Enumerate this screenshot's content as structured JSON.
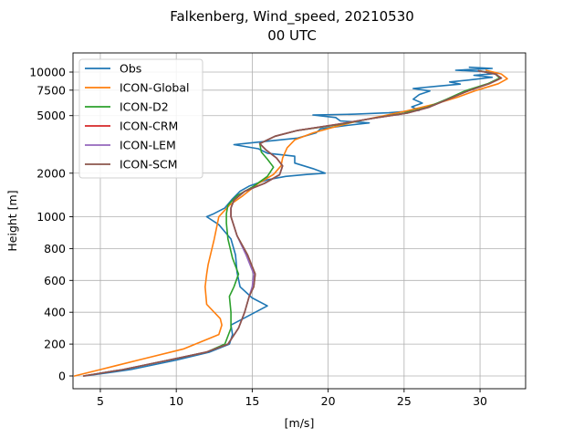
{
  "chart_data": {
    "type": "line",
    "title": "Falkenberg, Wind_speed, 20210530",
    "subtitle": "00 UTC",
    "xlabel": "[m/s]",
    "ylabel": "Height [m]",
    "xlim": [
      3.2,
      33.0
    ],
    "xticks": [
      5,
      10,
      15,
      20,
      25,
      30
    ],
    "ylim": [
      -80,
      12000
    ],
    "yscale": "piecewise: linear below 1000 m, logarithmic above",
    "yticks": [
      0,
      200,
      400,
      600,
      800,
      1000,
      2000,
      5000,
      7500,
      10000
    ],
    "grid": true,
    "legend": "upper-left",
    "series": [
      {
        "name": "Obs",
        "color": "#1f77b4",
        "points": [
          [
            4.0,
            0
          ],
          [
            7.0,
            40
          ],
          [
            10.0,
            100
          ],
          [
            12.2,
            150
          ],
          [
            13.5,
            200
          ],
          [
            13.7,
            260
          ],
          [
            13.6,
            320
          ],
          [
            14.8,
            380
          ],
          [
            16.0,
            440
          ],
          [
            15.0,
            490
          ],
          [
            14.2,
            560
          ],
          [
            14.0,
            650
          ],
          [
            13.9,
            760
          ],
          [
            13.6,
            860
          ],
          [
            12.8,
            950
          ],
          [
            12.0,
            1000
          ],
          [
            12.4,
            1040
          ],
          [
            13.2,
            1150
          ],
          [
            13.7,
            1330
          ],
          [
            14.2,
            1500
          ],
          [
            14.8,
            1630
          ],
          [
            16.0,
            1800
          ],
          [
            17.2,
            1900
          ],
          [
            18.6,
            1960
          ],
          [
            19.8,
            2000
          ],
          [
            19.0,
            2150
          ],
          [
            17.8,
            2350
          ],
          [
            17.8,
            2620
          ],
          [
            16.0,
            2750
          ],
          [
            15.4,
            2950
          ],
          [
            13.8,
            3150
          ],
          [
            15.0,
            3250
          ],
          [
            18.0,
            3500
          ],
          [
            19.2,
            3800
          ],
          [
            19.5,
            4050
          ],
          [
            21.0,
            4250
          ],
          [
            22.7,
            4450
          ],
          [
            20.8,
            4600
          ],
          [
            20.5,
            4850
          ],
          [
            19.0,
            5050
          ],
          [
            21.8,
            5120
          ],
          [
            24.0,
            5230
          ],
          [
            26.0,
            5430
          ],
          [
            25.5,
            5750
          ],
          [
            26.2,
            6100
          ],
          [
            25.6,
            6500
          ],
          [
            26.0,
            7000
          ],
          [
            26.7,
            7400
          ],
          [
            25.6,
            7700
          ],
          [
            27.2,
            8000
          ],
          [
            28.7,
            8250
          ],
          [
            28.0,
            8550
          ],
          [
            29.2,
            8800
          ],
          [
            30.8,
            9200
          ],
          [
            29.6,
            9500
          ],
          [
            31.2,
            9800
          ],
          [
            30.2,
            10100
          ],
          [
            28.4,
            10300
          ],
          [
            30.8,
            10600
          ],
          [
            29.3,
            10800
          ]
        ]
      },
      {
        "name": "ICON-Global",
        "color": "#ff7f0e",
        "points": [
          [
            3.3,
            0
          ],
          [
            5.0,
            40
          ],
          [
            7.5,
            100
          ],
          [
            10.5,
            170
          ],
          [
            12.8,
            260
          ],
          [
            13.0,
            320
          ],
          [
            12.9,
            360
          ],
          [
            12.0,
            450
          ],
          [
            11.9,
            560
          ],
          [
            12.0,
            640
          ],
          [
            12.1,
            700
          ],
          [
            12.5,
            860
          ],
          [
            12.8,
            1000
          ],
          [
            13.5,
            1200
          ],
          [
            14.4,
            1400
          ],
          [
            15.4,
            1700
          ],
          [
            16.4,
            1960
          ],
          [
            16.9,
            2250
          ],
          [
            17.0,
            2550
          ],
          [
            17.3,
            3000
          ],
          [
            17.8,
            3400
          ],
          [
            19.0,
            3800
          ],
          [
            20.5,
            4200
          ],
          [
            22.0,
            4600
          ],
          [
            23.5,
            4950
          ],
          [
            25.2,
            5400
          ],
          [
            27.0,
            6000
          ],
          [
            28.5,
            6700
          ],
          [
            29.8,
            7500
          ],
          [
            31.2,
            8300
          ],
          [
            31.8,
            9000
          ],
          [
            31.4,
            9700
          ],
          [
            30.4,
            10300
          ]
        ]
      },
      {
        "name": "ICON-D2",
        "color": "#2ca02c",
        "points": [
          [
            3.9,
            0
          ],
          [
            6.5,
            40
          ],
          [
            9.5,
            100
          ],
          [
            12.0,
            150
          ],
          [
            13.2,
            200
          ],
          [
            13.6,
            300
          ],
          [
            13.6,
            400
          ],
          [
            13.5,
            500
          ],
          [
            13.8,
            560
          ],
          [
            14.1,
            640
          ],
          [
            13.7,
            740
          ],
          [
            13.4,
            860
          ],
          [
            13.3,
            960
          ],
          [
            13.3,
            1050
          ],
          [
            13.4,
            1200
          ],
          [
            14.0,
            1400
          ],
          [
            15.0,
            1600
          ],
          [
            16.0,
            1900
          ],
          [
            16.4,
            2200
          ],
          [
            16.0,
            2500
          ],
          [
            15.6,
            2800
          ],
          [
            15.5,
            3200
          ],
          [
            16.5,
            3600
          ],
          [
            18.0,
            3950
          ],
          [
            20.5,
            4300
          ],
          [
            23.0,
            4800
          ],
          [
            25.0,
            5200
          ],
          [
            26.5,
            5700
          ],
          [
            27.8,
            6500
          ],
          [
            29.0,
            7400
          ],
          [
            30.5,
            8300
          ],
          [
            31.3,
            9100
          ],
          [
            31.0,
            9700
          ],
          [
            30.0,
            10200
          ]
        ]
      },
      {
        "name": "ICON-CRM",
        "color": "#d62728",
        "points": [
          [
            3.9,
            0
          ],
          [
            6.5,
            40
          ],
          [
            9.5,
            100
          ],
          [
            12.0,
            150
          ],
          [
            13.4,
            200
          ],
          [
            14.1,
            300
          ],
          [
            14.5,
            400
          ],
          [
            14.8,
            500
          ],
          [
            15.1,
            560
          ],
          [
            15.2,
            640
          ],
          [
            14.7,
            760
          ],
          [
            14.0,
            880
          ],
          [
            13.6,
            1000
          ],
          [
            13.6,
            1150
          ],
          [
            13.8,
            1300
          ],
          [
            14.5,
            1500
          ],
          [
            15.8,
            1700
          ],
          [
            16.8,
            1950
          ],
          [
            17.0,
            2250
          ],
          [
            16.6,
            2550
          ],
          [
            15.9,
            2900
          ],
          [
            15.5,
            3200
          ],
          [
            16.5,
            3600
          ],
          [
            18.0,
            3950
          ],
          [
            20.6,
            4350
          ],
          [
            23.0,
            4800
          ],
          [
            25.2,
            5200
          ],
          [
            26.6,
            5700
          ],
          [
            27.9,
            6500
          ],
          [
            29.2,
            7400
          ],
          [
            30.6,
            8300
          ],
          [
            31.4,
            9100
          ],
          [
            31.0,
            9700
          ],
          [
            29.9,
            10200
          ]
        ]
      },
      {
        "name": "ICON-LEM",
        "color": "#9467bd",
        "points": [
          [
            3.9,
            0
          ],
          [
            6.5,
            40
          ],
          [
            9.5,
            100
          ],
          [
            12.0,
            150
          ],
          [
            13.4,
            200
          ],
          [
            14.1,
            300
          ],
          [
            14.5,
            400
          ],
          [
            14.8,
            500
          ],
          [
            15.0,
            560
          ],
          [
            15.1,
            640
          ],
          [
            14.6,
            760
          ],
          [
            14.0,
            880
          ],
          [
            13.6,
            1000
          ],
          [
            13.6,
            1150
          ],
          [
            13.8,
            1300
          ],
          [
            14.5,
            1500
          ],
          [
            15.8,
            1700
          ],
          [
            16.8,
            1950
          ],
          [
            17.0,
            2250
          ],
          [
            16.6,
            2550
          ],
          [
            15.9,
            2900
          ],
          [
            15.5,
            3200
          ],
          [
            16.5,
            3600
          ],
          [
            18.0,
            3950
          ],
          [
            20.6,
            4350
          ],
          [
            23.0,
            4800
          ],
          [
            25.2,
            5200
          ],
          [
            26.6,
            5700
          ],
          [
            27.9,
            6500
          ],
          [
            29.2,
            7400
          ],
          [
            30.6,
            8300
          ],
          [
            31.4,
            9100
          ],
          [
            31.0,
            9700
          ],
          [
            29.9,
            10200
          ]
        ]
      },
      {
        "name": "ICON-SCM",
        "color": "#8c564b",
        "points": [
          [
            3.9,
            0
          ],
          [
            6.5,
            40
          ],
          [
            9.5,
            100
          ],
          [
            12.0,
            150
          ],
          [
            13.4,
            200
          ],
          [
            14.1,
            300
          ],
          [
            14.5,
            400
          ],
          [
            14.8,
            500
          ],
          [
            15.1,
            560
          ],
          [
            15.2,
            640
          ],
          [
            14.7,
            760
          ],
          [
            14.0,
            880
          ],
          [
            13.6,
            1000
          ],
          [
            13.6,
            1150
          ],
          [
            13.8,
            1300
          ],
          [
            14.5,
            1500
          ],
          [
            15.8,
            1700
          ],
          [
            16.8,
            1950
          ],
          [
            17.0,
            2250
          ],
          [
            16.6,
            2550
          ],
          [
            15.9,
            2900
          ],
          [
            15.5,
            3200
          ],
          [
            16.5,
            3600
          ],
          [
            18.0,
            3950
          ],
          [
            20.6,
            4350
          ],
          [
            23.0,
            4800
          ],
          [
            25.2,
            5200
          ],
          [
            26.6,
            5700
          ],
          [
            27.9,
            6500
          ],
          [
            29.2,
            7400
          ],
          [
            30.6,
            8300
          ],
          [
            31.4,
            9100
          ],
          [
            31.0,
            9700
          ],
          [
            29.9,
            10200
          ]
        ]
      }
    ]
  }
}
